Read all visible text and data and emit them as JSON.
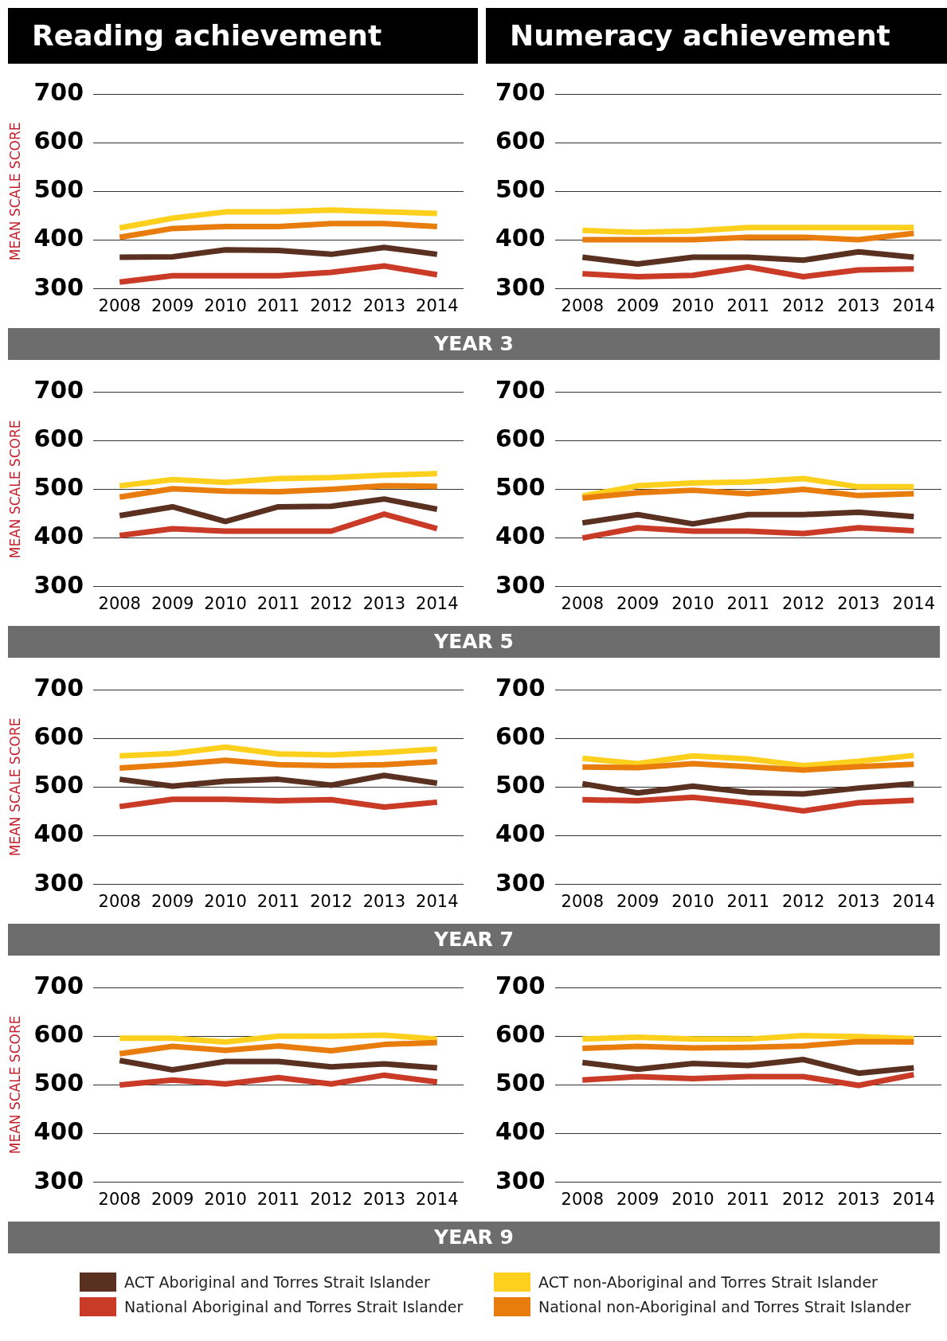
{
  "chart_data": [
    {
      "type": "line",
      "title": "Reading achievement",
      "ylabel": "MEAN SCALE SCORE",
      "annotations": [
        "YEAR 3"
      ],
      "categories": [
        "2008",
        "2009",
        "2010",
        "2011",
        "2012",
        "2013",
        "2014"
      ],
      "ylim": [
        300,
        700
      ],
      "yticks": [
        300,
        400,
        500,
        600,
        700
      ],
      "grid": "y",
      "legend": "bottom",
      "marker": "none",
      "series": [
        {
          "name": "ACT non-Aboriginal and Torres Strait Islander",
          "color": "#fdd01e",
          "values": [
            425,
            445,
            458,
            458,
            462,
            458,
            455
          ]
        },
        {
          "name": "National non-Aboriginal and Torres Strait Islander",
          "color": "#e87d0d",
          "values": [
            406,
            424,
            428,
            428,
            434,
            434,
            428
          ]
        },
        {
          "name": "ACT Aboriginal and Torres Strait Islander",
          "color": "#5a3120",
          "values": [
            365,
            366,
            380,
            379,
            371,
            385,
            371
          ]
        },
        {
          "name": "National Aboriginal and Torres Strait Islander",
          "color": "#c93a27",
          "values": [
            314,
            327,
            327,
            327,
            334,
            347,
            329
          ]
        }
      ]
    },
    {
      "type": "line",
      "title": "Numeracy achievement",
      "categories": [
        "2008",
        "2009",
        "2010",
        "2011",
        "2012",
        "2013",
        "2014"
      ],
      "ylim": [
        300,
        700
      ],
      "yticks": [
        300,
        400,
        500,
        600,
        700
      ],
      "grid": "y",
      "marker": "none",
      "series": [
        {
          "color": "#fdd01e",
          "values": [
            420,
            416,
            419,
            426,
            426,
            426,
            426
          ]
        },
        {
          "color": "#e87d0d",
          "values": [
            401,
            401,
            401,
            406,
            406,
            401,
            414
          ]
        },
        {
          "color": "#5a3120",
          "values": [
            365,
            351,
            365,
            365,
            359,
            376,
            365
          ]
        },
        {
          "color": "#c93a27",
          "values": [
            331,
            325,
            328,
            345,
            325,
            339,
            341
          ]
        }
      ]
    },
    {
      "type": "line",
      "ylabel": "MEAN SCALE SCORE",
      "annotations": [
        "YEAR 5"
      ],
      "categories": [
        "2008",
        "2009",
        "2010",
        "2011",
        "2012",
        "2013",
        "2014"
      ],
      "ylim": [
        300,
        700
      ],
      "yticks": [
        300,
        400,
        500,
        600,
        700
      ],
      "grid": "y",
      "marker": "none",
      "series": [
        {
          "color": "#fdd01e",
          "values": [
            507,
            520,
            514,
            522,
            524,
            529,
            532
          ]
        },
        {
          "color": "#e87d0d",
          "values": [
            484,
            501,
            496,
            495,
            500,
            507,
            506
          ]
        },
        {
          "color": "#5a3120",
          "values": [
            446,
            464,
            434,
            464,
            465,
            480,
            459
          ]
        },
        {
          "color": "#c93a27",
          "values": [
            405,
            419,
            414,
            414,
            414,
            449,
            419
          ]
        }
      ]
    },
    {
      "type": "line",
      "categories": [
        "2008",
        "2009",
        "2010",
        "2011",
        "2012",
        "2013",
        "2014"
      ],
      "ylim": [
        300,
        700
      ],
      "yticks": [
        300,
        400,
        500,
        600,
        700
      ],
      "grid": "y",
      "marker": "none",
      "series": [
        {
          "color": "#fdd01e",
          "values": [
            486,
            507,
            513,
            515,
            522,
            505,
            505
          ]
        },
        {
          "color": "#e87d0d",
          "values": [
            482,
            493,
            498,
            491,
            500,
            487,
            491
          ]
        },
        {
          "color": "#5a3120",
          "values": [
            431,
            448,
            429,
            448,
            448,
            453,
            444
          ]
        },
        {
          "color": "#c93a27",
          "values": [
            400,
            421,
            414,
            414,
            409,
            421,
            415
          ]
        }
      ]
    },
    {
      "type": "line",
      "ylabel": "MEAN SCALE SCORE",
      "annotations": [
        "YEAR 7"
      ],
      "categories": [
        "2008",
        "2009",
        "2010",
        "2011",
        "2012",
        "2013",
        "2014"
      ],
      "ylim": [
        300,
        700
      ],
      "yticks": [
        300,
        400,
        500,
        600,
        700
      ],
      "grid": "y",
      "marker": "none",
      "series": [
        {
          "color": "#fdd01e",
          "values": [
            564,
            569,
            582,
            568,
            566,
            571,
            578
          ]
        },
        {
          "color": "#e87d0d",
          "values": [
            539,
            546,
            555,
            546,
            544,
            546,
            552
          ]
        },
        {
          "color": "#5a3120",
          "values": [
            516,
            502,
            512,
            516,
            504,
            524,
            508
          ]
        },
        {
          "color": "#c93a27",
          "values": [
            460,
            475,
            475,
            472,
            474,
            459,
            469
          ]
        }
      ]
    },
    {
      "type": "line",
      "categories": [
        "2008",
        "2009",
        "2010",
        "2011",
        "2012",
        "2013",
        "2014"
      ],
      "ylim": [
        300,
        700
      ],
      "yticks": [
        300,
        400,
        500,
        600,
        700
      ],
      "grid": "y",
      "marker": "none",
      "series": [
        {
          "color": "#fdd01e",
          "values": [
            559,
            548,
            564,
            558,
            544,
            553,
            565
          ]
        },
        {
          "color": "#e87d0d",
          "values": [
            541,
            540,
            548,
            542,
            535,
            542,
            547
          ]
        },
        {
          "color": "#5a3120",
          "values": [
            507,
            488,
            502,
            489,
            486,
            498,
            507
          ]
        },
        {
          "color": "#c93a27",
          "values": [
            474,
            472,
            479,
            467,
            451,
            468,
            473
          ]
        }
      ]
    },
    {
      "type": "line",
      "ylabel": "MEAN SCALE SCORE",
      "annotations": [
        "YEAR 9"
      ],
      "categories": [
        "2008",
        "2009",
        "2010",
        "2011",
        "2012",
        "2013",
        "2014"
      ],
      "ylim": [
        300,
        700
      ],
      "yticks": [
        300,
        400,
        500,
        600,
        700
      ],
      "grid": "y",
      "marker": "none",
      "series": [
        {
          "color": "#fdd01e",
          "values": [
            596,
            596,
            588,
            600,
            600,
            602,
            594
          ]
        },
        {
          "color": "#e87d0d",
          "values": [
            564,
            579,
            571,
            580,
            570,
            583,
            587
          ]
        },
        {
          "color": "#5a3120",
          "values": [
            550,
            531,
            548,
            548,
            537,
            543,
            535
          ]
        },
        {
          "color": "#c93a27",
          "values": [
            500,
            510,
            502,
            515,
            502,
            520,
            506
          ]
        }
      ]
    },
    {
      "type": "line",
      "categories": [
        "2008",
        "2009",
        "2010",
        "2011",
        "2012",
        "2013",
        "2014"
      ],
      "ylim": [
        300,
        700
      ],
      "yticks": [
        300,
        400,
        500,
        600,
        700
      ],
      "grid": "y",
      "marker": "none",
      "series": [
        {
          "color": "#fdd01e",
          "values": [
            594,
            598,
            594,
            594,
            601,
            599,
            595
          ]
        },
        {
          "color": "#e87d0d",
          "values": [
            575,
            579,
            576,
            577,
            580,
            589,
            588
          ]
        },
        {
          "color": "#5a3120",
          "values": [
            546,
            532,
            544,
            540,
            552,
            524,
            535
          ]
        },
        {
          "color": "#c93a27",
          "values": [
            510,
            517,
            513,
            517,
            517,
            499,
            521
          ]
        }
      ]
    }
  ]
}
